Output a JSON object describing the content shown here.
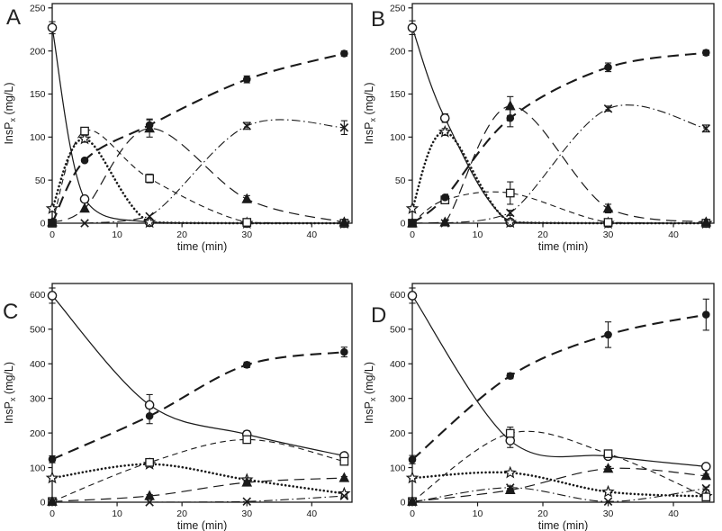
{
  "figure": {
    "background": "#ffffff",
    "ink": "#1a1a1a",
    "panel_labels": [
      "A",
      "B",
      "C",
      "D"
    ]
  },
  "chart_data": [
    {
      "type": "line",
      "label": "A",
      "xlabel": "time (min)",
      "ylabel": {
        "pre": "InsP",
        "sub": "x",
        "post": " (mg/L)"
      },
      "xlim": [
        0,
        46.2
      ],
      "ylim": [
        0,
        255
      ],
      "xticks": [
        0,
        10,
        20,
        30,
        40
      ],
      "yticks": [
        0,
        50,
        100,
        150,
        200,
        250
      ],
      "x": [
        0,
        5,
        15,
        30,
        45
      ],
      "series": [
        {
          "name": "open-circle-solid",
          "marker": "open-circle",
          "line": "solid",
          "values": [
            227,
            28,
            1,
            0,
            0
          ],
          "errors": [
            7,
            0,
            0,
            0,
            0
          ]
        },
        {
          "name": "open-star-dotted",
          "marker": "open-star",
          "line": "dotted",
          "values": [
            17,
            98,
            1,
            0,
            0
          ],
          "errors": [
            0,
            4,
            0,
            0,
            0
          ]
        },
        {
          "name": "open-square-dash",
          "marker": "open-square",
          "line": "dash",
          "values": [
            0,
            107,
            52,
            1,
            0
          ],
          "errors": [
            0,
            0,
            5,
            0,
            0
          ]
        },
        {
          "name": "filled-triangle-longdash",
          "marker": "filled-triangle",
          "line": "longdash",
          "values": [
            1,
            17,
            110,
            28,
            1
          ],
          "errors": [
            0,
            0,
            10,
            4,
            0
          ]
        },
        {
          "name": "x-cross-dashdot",
          "marker": "x-cross",
          "line": "dashdot",
          "values": [
            0,
            0,
            8,
            113,
            111
          ],
          "errors": [
            0,
            0,
            0,
            4,
            8
          ]
        },
        {
          "name": "filled-circle-longdash",
          "marker": "filled-circle",
          "line": "boldlongdash",
          "values": [
            0,
            73,
            114,
            167,
            197
          ],
          "errors": [
            0,
            0,
            7,
            4,
            3
          ]
        }
      ]
    },
    {
      "type": "line",
      "label": "B",
      "xlabel": "time (min)",
      "ylabel": {
        "pre": "InsP",
        "sub": "x",
        "post": " (mg/L)"
      },
      "xlim": [
        0,
        46.2
      ],
      "ylim": [
        0,
        255
      ],
      "xticks": [
        0,
        10,
        20,
        30,
        40
      ],
      "yticks": [
        0,
        50,
        100,
        150,
        200,
        250
      ],
      "x": [
        0,
        5,
        15,
        30,
        45
      ],
      "series": [
        {
          "name": "open-circle-solid",
          "marker": "open-circle",
          "line": "solid",
          "values": [
            227,
            122,
            1,
            0,
            0
          ],
          "errors": [
            8,
            5,
            0,
            0,
            0
          ]
        },
        {
          "name": "open-star-dotted",
          "marker": "open-star",
          "line": "dotted",
          "values": [
            17,
            106,
            1,
            0,
            0
          ],
          "errors": [
            0,
            4,
            0,
            0,
            0
          ]
        },
        {
          "name": "open-square-dash",
          "marker": "open-square",
          "line": "dash",
          "values": [
            0,
            27,
            35,
            1,
            0
          ],
          "errors": [
            0,
            3,
            13,
            0,
            0
          ]
        },
        {
          "name": "filled-triangle-longdash",
          "marker": "filled-triangle",
          "line": "longdash",
          "values": [
            0,
            1,
            136,
            17,
            1
          ],
          "errors": [
            0,
            0,
            11,
            5,
            0
          ]
        },
        {
          "name": "x-cross-dashdot",
          "marker": "x-cross",
          "line": "dashdot",
          "values": [
            0,
            0,
            12,
            133,
            110
          ],
          "errors": [
            0,
            0,
            3,
            3,
            4
          ]
        },
        {
          "name": "filled-circle-longdash",
          "marker": "filled-circle",
          "line": "boldlongdash",
          "values": [
            0,
            30,
            122,
            181,
            198
          ],
          "errors": [
            0,
            0,
            10,
            5,
            3
          ]
        }
      ]
    },
    {
      "type": "line",
      "label": "C",
      "xlabel": "time (min)",
      "ylabel": {
        "pre": "InsP",
        "sub": "x",
        "post": " (mg/L)"
      },
      "xlim": [
        0,
        46.2
      ],
      "ylim": [
        0,
        632
      ],
      "xticks": [
        0,
        10,
        20,
        30,
        40
      ],
      "yticks": [
        0,
        100,
        200,
        300,
        400,
        500,
        600
      ],
      "x": [
        0,
        15,
        30,
        45
      ],
      "series": [
        {
          "name": "open-circle-solid",
          "marker": "open-circle",
          "line": "solid",
          "values": [
            597,
            281,
            196,
            134
          ],
          "errors": [
            22,
            30,
            10,
            8
          ]
        },
        {
          "name": "open-star-dotted",
          "marker": "open-star",
          "line": "dotted",
          "values": [
            70,
            110,
            65,
            25
          ],
          "errors": [
            5,
            8,
            5,
            4
          ]
        },
        {
          "name": "open-square-dash",
          "marker": "open-square",
          "line": "dash",
          "values": [
            2,
            115,
            181,
            118
          ],
          "errors": [
            0,
            10,
            8,
            6
          ]
        },
        {
          "name": "filled-triangle-longdash",
          "marker": "filled-triangle",
          "line": "longdash",
          "values": [
            2,
            18,
            57,
            70
          ],
          "errors": [
            0,
            4,
            4,
            4
          ]
        },
        {
          "name": "x-cross-dashdot",
          "marker": "x-cross",
          "line": "dashdot",
          "values": [
            0,
            0,
            2,
            18
          ],
          "errors": [
            0,
            0,
            0,
            3
          ]
        },
        {
          "name": "filled-circle-longdash",
          "marker": "filled-circle",
          "line": "boldlongdash",
          "values": [
            124,
            249,
            397,
            434
          ],
          "errors": [
            10,
            22,
            8,
            14
          ]
        }
      ]
    },
    {
      "type": "line",
      "label": "D",
      "xlabel": "time (min)",
      "ylabel": {
        "pre": "InsP",
        "sub": "x",
        "post": " (mg/L)"
      },
      "xlim": [
        0,
        46.2
      ],
      "ylim": [
        0,
        632
      ],
      "xticks": [
        0,
        10,
        20,
        30,
        40
      ],
      "yticks": [
        0,
        100,
        200,
        300,
        400,
        500,
        600
      ],
      "x": [
        0,
        15,
        30,
        45
      ],
      "series": [
        {
          "name": "open-circle-solid",
          "marker": "open-circle",
          "line": "solid",
          "values": [
            597,
            178,
            133,
            103
          ],
          "errors": [
            22,
            20,
            8,
            6
          ]
        },
        {
          "name": "open-star-dotted",
          "marker": "open-star",
          "line": "dotted",
          "values": [
            70,
            85,
            30,
            17
          ],
          "errors": [
            4,
            5,
            4,
            3
          ]
        },
        {
          "name": "open-square-dash",
          "marker": "open-square",
          "line": "dash",
          "values": [
            2,
            199,
            140,
            15
          ],
          "errors": [
            0,
            18,
            10,
            4
          ]
        },
        {
          "name": "filled-triangle-longdash",
          "marker": "filled-triangle",
          "line": "longdash",
          "values": [
            2,
            35,
            97,
            76
          ],
          "errors": [
            0,
            5,
            6,
            5
          ]
        },
        {
          "name": "x-cross-dashdot",
          "marker": "x-cross",
          "line": "dashdot",
          "values": [
            0,
            42,
            2,
            40
          ],
          "errors": [
            0,
            4,
            0,
            4
          ]
        },
        {
          "name": "filled-circle-longdash",
          "marker": "filled-circle",
          "line": "boldlongdash",
          "values": [
            123,
            365,
            484,
            542
          ],
          "errors": [
            12,
            8,
            37,
            45
          ]
        }
      ]
    }
  ]
}
